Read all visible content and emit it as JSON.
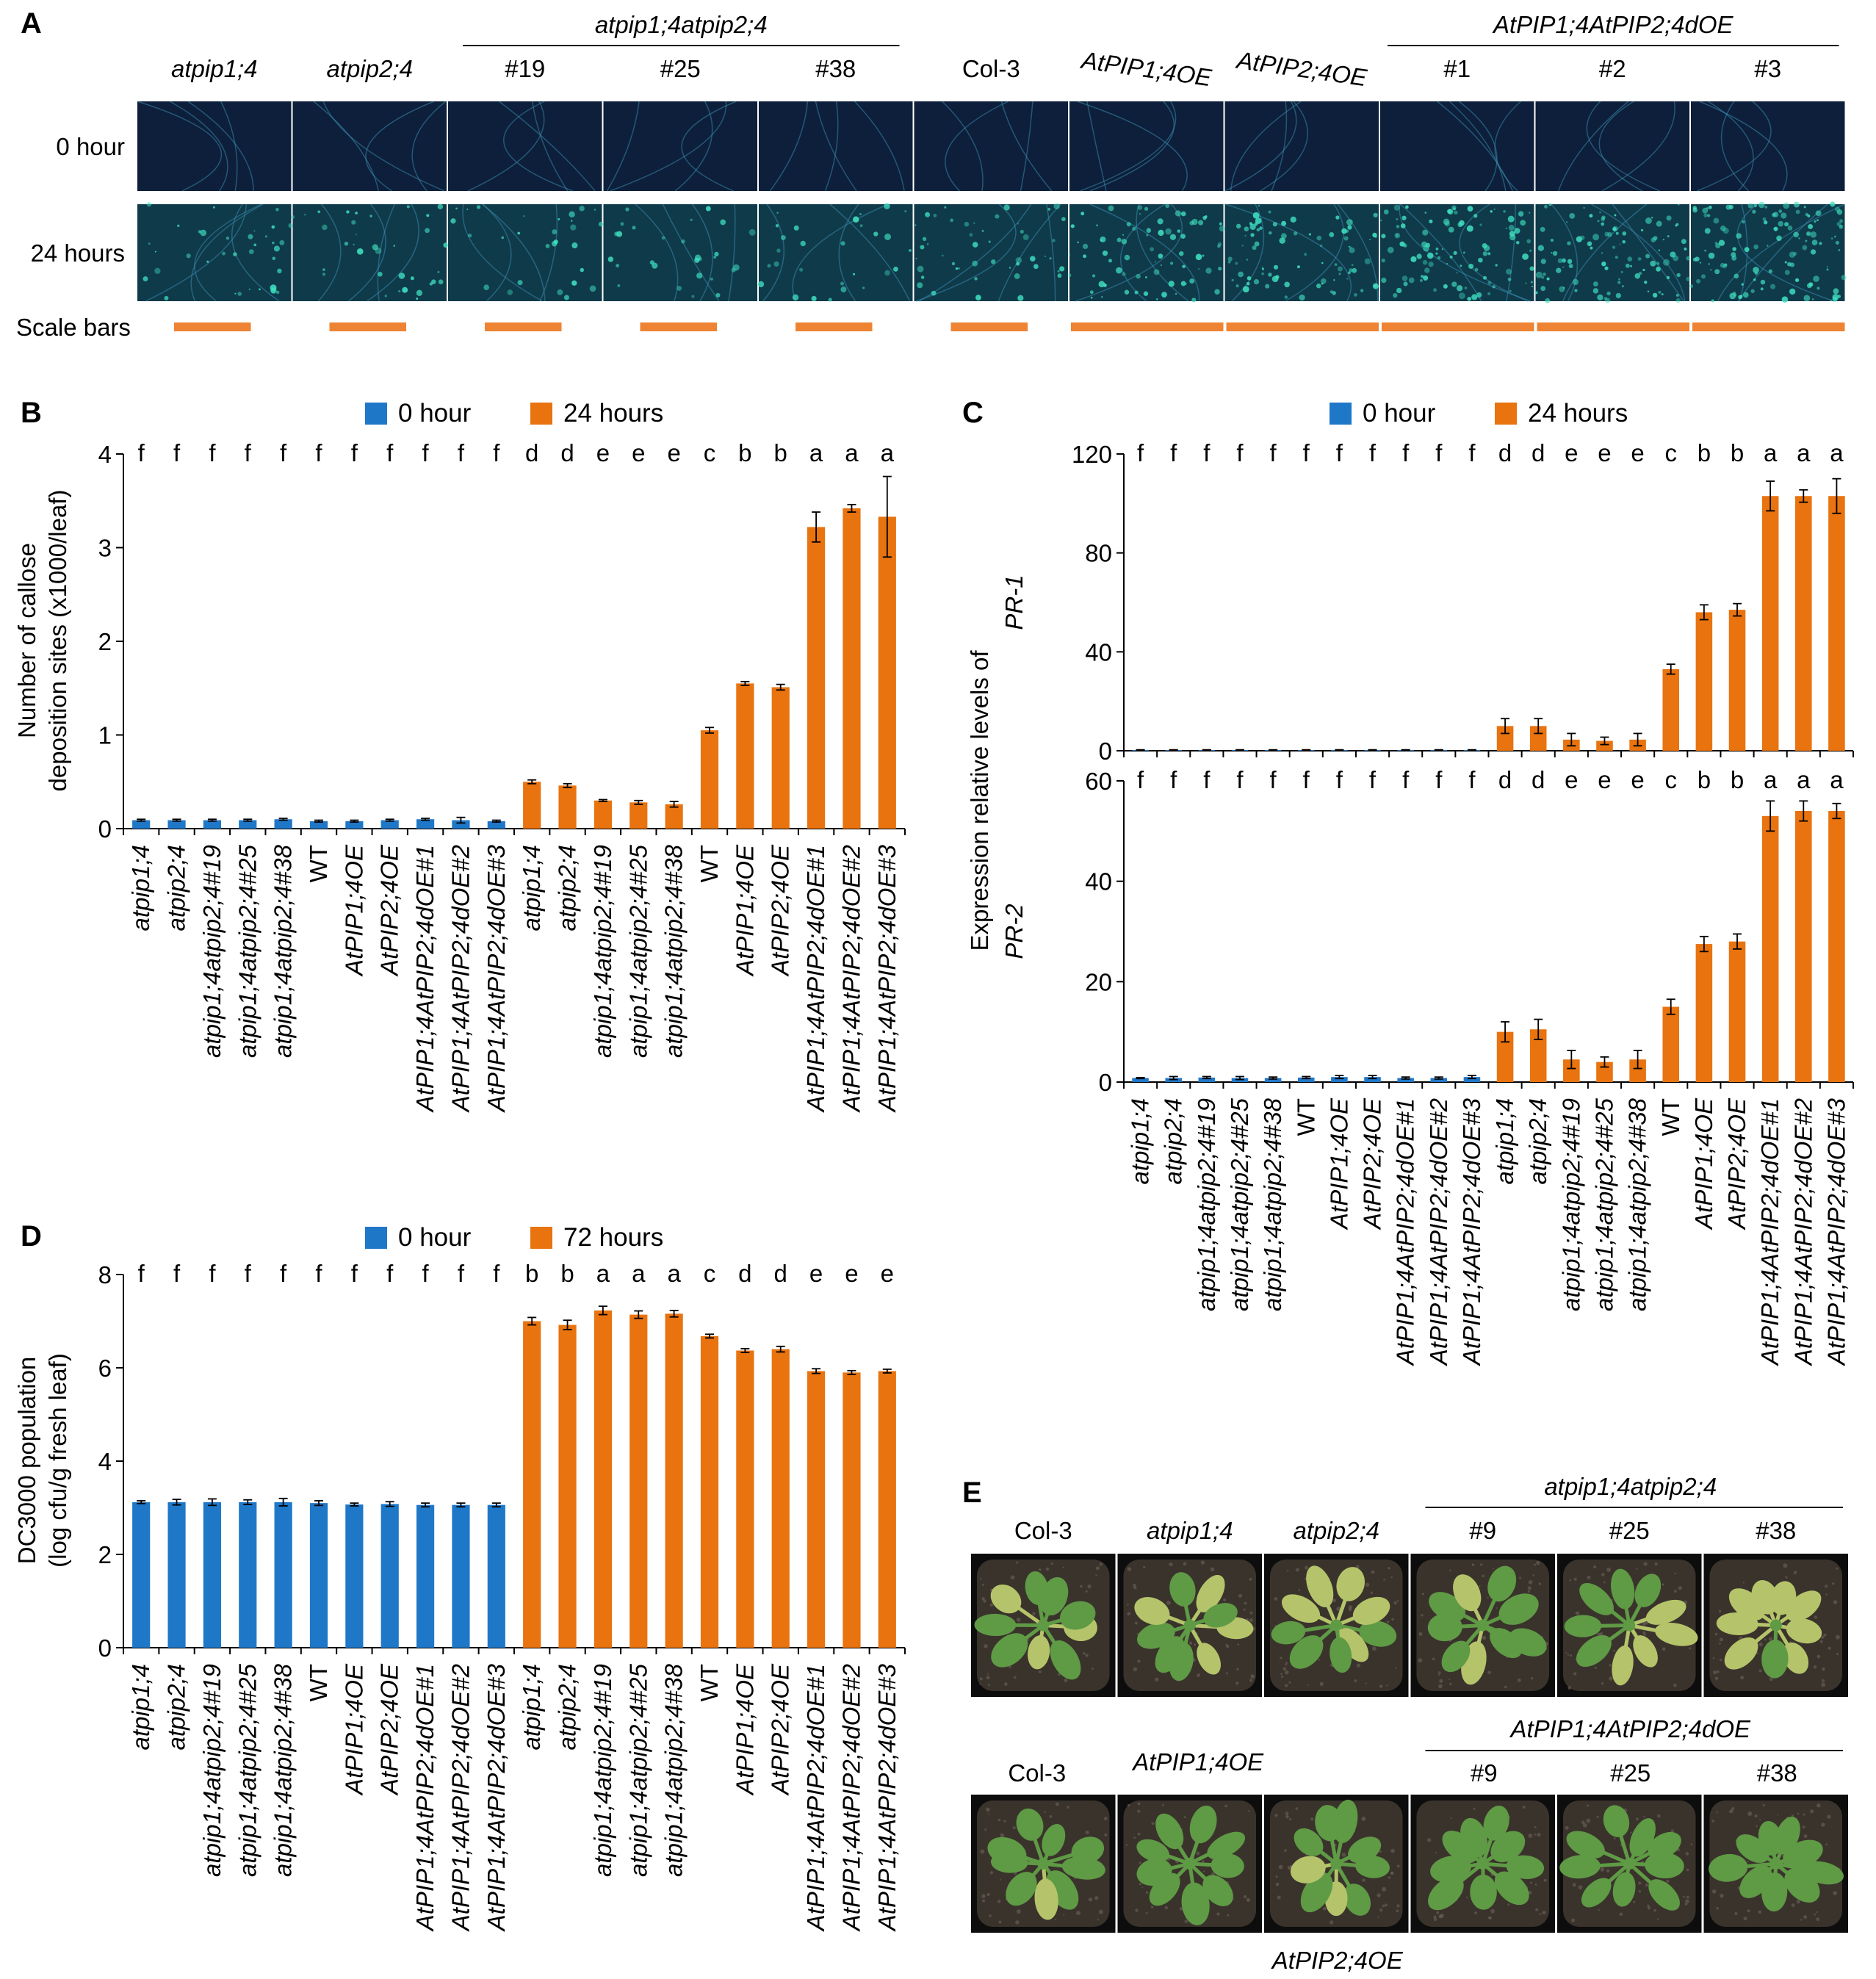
{
  "panel_letters": {
    "a": "A",
    "b": "B",
    "c": "C",
    "d": "D",
    "e": "E"
  },
  "colors": {
    "blue": "#1f77c8",
    "orange": "#e8730f",
    "scale_orange": "#ee8433",
    "micro_bg_0h": "#0d1f3a",
    "micro_bg_24h": "#0f3a4a",
    "micro_vein": "#3b8fb4",
    "micro_spot": "#3fe0c0",
    "tray_bg": "#0d0d0d",
    "soil": "#3a332c",
    "leaf_green": "#5f9a45",
    "leaf_yellow": "#b5c46a"
  },
  "panel_a": {
    "col_headers": [
      "atpip1;4",
      "atpip2;4",
      "#19",
      "#25",
      "#38",
      "Col-3",
      "AtPIP1;4OE",
      "AtPIP2;4OE",
      "#1",
      "#2",
      "#3"
    ],
    "group_double_mutant": "atpip1;4atpip2;4",
    "group_double_oe": "AtPIP1;4AtPIP2;4dOE",
    "row_0h": "0 hour",
    "row_24h": "24 hours",
    "scale_bars": "Scale bars",
    "spot_density": [
      0.25,
      0.25,
      0.2,
      0.2,
      0.2,
      0.35,
      0.55,
      0.6,
      0.75,
      0.75,
      0.9
    ]
  },
  "panel_e": {
    "row1": {
      "labels": [
        "Col-3",
        "atpip1;4",
        "atpip2;4",
        "#9",
        "#25",
        "#38"
      ],
      "group": "atpip1;4atpip2;4",
      "yellowness": [
        0.15,
        0.5,
        0.55,
        0.45,
        0.5,
        0.6
      ]
    },
    "row2": {
      "labels": [
        "Col-3",
        "AtPIP1;4OE",
        "#9",
        "#25",
        "#38"
      ],
      "bottom_label": "AtPIP2;4OE",
      "group": "AtPIP1;4AtPIP2;4dOE",
      "yellowness": [
        0.15,
        0.12,
        0.1,
        0.05,
        0.05,
        0.05
      ]
    }
  },
  "categories": [
    "atpip1;4",
    "atpip2;4",
    "atpip1;4atpip2;4#19",
    "atpip1;4atpip2;4#25",
    "atpip1;4atpip2;4#38",
    "WT",
    "AtPIP1;4OE",
    "AtPIP2;4OE",
    "AtPIP1;4AtPIP2;4dOE#1",
    "AtPIP1;4AtPIP2;4dOE#2",
    "AtPIP1;4AtPIP2;4dOE#3"
  ],
  "chart_data": [
    {
      "id": "B",
      "type": "bar",
      "ylabel": [
        "Number of callose",
        "deposition sites (x1000/leaf)"
      ],
      "ylim": [
        0,
        4
      ],
      "yticks": [
        0,
        1,
        2,
        3,
        4
      ],
      "legend": [
        "0 hour",
        "24 hours"
      ],
      "series": [
        {
          "name": "0 hour",
          "values": [
            0.09,
            0.09,
            0.09,
            0.09,
            0.1,
            0.08,
            0.08,
            0.09,
            0.1,
            0.09,
            0.08
          ],
          "errors": [
            0.01,
            0.01,
            0.01,
            0.01,
            0.01,
            0.01,
            0.01,
            0.01,
            0.01,
            0.03,
            0.01
          ]
        },
        {
          "name": "24 hours",
          "values": [
            0.5,
            0.46,
            0.3,
            0.28,
            0.26,
            1.05,
            1.55,
            1.51,
            3.22,
            3.42,
            3.33
          ],
          "errors": [
            0.02,
            0.02,
            0.01,
            0.02,
            0.03,
            0.03,
            0.02,
            0.03,
            0.16,
            0.04,
            0.43
          ]
        }
      ],
      "letters": [
        "f",
        "f",
        "f",
        "f",
        "f",
        "f",
        "f",
        "f",
        "f",
        "f",
        "f",
        "d",
        "d",
        "e",
        "e",
        "e",
        "c",
        "b",
        "b",
        "a",
        "a",
        "a"
      ]
    },
    {
      "id": "C1",
      "type": "bar",
      "ylabel_gene": "PR-1",
      "ylim": [
        0,
        120
      ],
      "yticks": [
        0,
        40,
        80,
        120
      ],
      "legend": [
        "0 hour",
        "24 hours"
      ],
      "series": [
        {
          "name": "0 hour",
          "values": [
            0.3,
            0.3,
            0.3,
            0.3,
            0.3,
            0.3,
            0.3,
            0.3,
            0.3,
            0.3,
            0.3
          ],
          "errors": [
            0.1,
            0.1,
            0.1,
            0.1,
            0.1,
            0.1,
            0.1,
            0.1,
            0.1,
            0.1,
            0.1
          ]
        },
        {
          "name": "24 hours",
          "values": [
            10,
            10,
            4.5,
            4,
            4.5,
            33,
            56,
            57,
            103,
            103,
            103
          ],
          "errors": [
            3,
            3,
            2.5,
            1.5,
            2.5,
            2,
            3,
            2.5,
            6,
            2.5,
            7
          ]
        }
      ],
      "letters": [
        "f",
        "f",
        "f",
        "f",
        "f",
        "f",
        "f",
        "f",
        "f",
        "f",
        "f",
        "d",
        "d",
        "e",
        "e",
        "e",
        "c",
        "b",
        "b",
        "a",
        "a",
        "a"
      ]
    },
    {
      "id": "C2",
      "type": "bar",
      "ylabel_gene": "PR-2",
      "ylabel_shared": [
        "Expression relative levels of"
      ],
      "ylim": [
        0,
        60
      ],
      "yticks": [
        0,
        20,
        40,
        60
      ],
      "series": [
        {
          "name": "0 hour",
          "values": [
            0.8,
            0.8,
            0.9,
            0.8,
            0.8,
            0.9,
            1,
            1,
            0.8,
            0.8,
            1
          ],
          "errors": [
            0.1,
            0.3,
            0.2,
            0.3,
            0.2,
            0.2,
            0.3,
            0.3,
            0.2,
            0.2,
            0.3
          ]
        },
        {
          "name": "24 hours",
          "values": [
            10,
            10.5,
            4.5,
            4,
            4.5,
            15,
            27.5,
            28,
            53,
            54,
            54
          ],
          "errors": [
            2,
            2,
            1.8,
            1,
            1.8,
            1.5,
            1.5,
            1.5,
            3,
            2,
            1.5
          ]
        }
      ],
      "letters": [
        "f",
        "f",
        "f",
        "f",
        "f",
        "f",
        "f",
        "f",
        "f",
        "f",
        "f",
        "d",
        "d",
        "e",
        "e",
        "e",
        "c",
        "b",
        "b",
        "a",
        "a",
        "a"
      ]
    },
    {
      "id": "D",
      "type": "bar",
      "ylabel": [
        "DC3000 population",
        "(log cfu/g fresh leaf)"
      ],
      "ylim": [
        0,
        8
      ],
      "yticks": [
        0,
        2,
        4,
        6,
        8
      ],
      "legend": [
        "0 hour",
        "72 hours"
      ],
      "series": [
        {
          "name": "0 hour",
          "values": [
            3.12,
            3.12,
            3.12,
            3.12,
            3.12,
            3.1,
            3.07,
            3.08,
            3.06,
            3.06,
            3.06
          ],
          "errors": [
            0.03,
            0.06,
            0.07,
            0.05,
            0.08,
            0.05,
            0.03,
            0.05,
            0.04,
            0.04,
            0.04
          ]
        },
        {
          "name": "72 hours",
          "values": [
            7.0,
            6.92,
            7.23,
            7.14,
            7.16,
            6.68,
            6.37,
            6.4,
            5.93,
            5.9,
            5.93
          ],
          "errors": [
            0.08,
            0.1,
            0.09,
            0.08,
            0.07,
            0.04,
            0.04,
            0.06,
            0.05,
            0.04,
            0.04
          ]
        }
      ],
      "letters": [
        "f",
        "f",
        "f",
        "f",
        "f",
        "f",
        "f",
        "f",
        "f",
        "f",
        "f",
        "b",
        "b",
        "a",
        "a",
        "a",
        "c",
        "d",
        "d",
        "e",
        "e",
        "e"
      ]
    }
  ]
}
